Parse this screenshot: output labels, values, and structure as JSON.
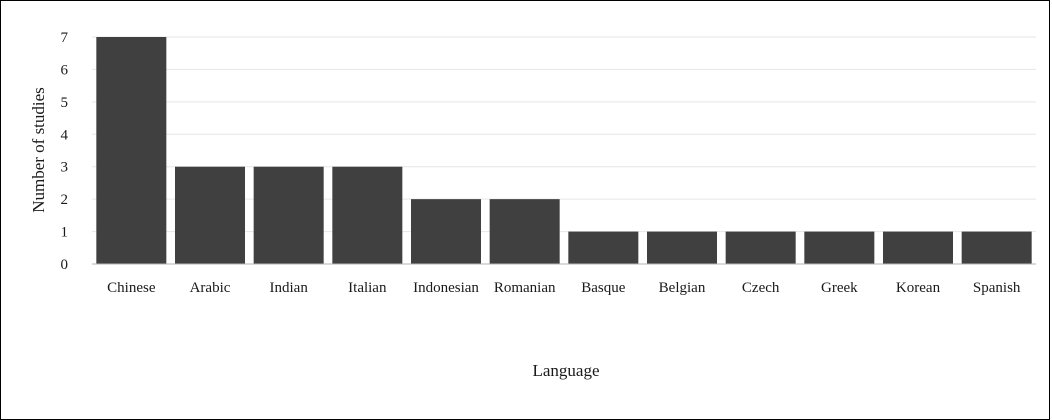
{
  "chart_data": {
    "type": "bar",
    "title": "",
    "xlabel": "Language",
    "ylabel": "Number of studies",
    "categories": [
      "Chinese",
      "Arabic",
      "Indian",
      "Italian",
      "Indonesian",
      "Romanian",
      "Basque",
      "Belgian",
      "Czech",
      "Greek",
      "Korean",
      "Spanish"
    ],
    "values": [
      7,
      3,
      3,
      3,
      2,
      2,
      1,
      1,
      1,
      1,
      1,
      1
    ],
    "ylim": [
      0,
      7
    ],
    "yticks": [
      "0",
      "1",
      "2",
      "3",
      "4",
      "5",
      "6",
      "7"
    ],
    "grid": true,
    "legend": "none",
    "colors": {
      "bar": "#404040",
      "grid": "#e6e6e6",
      "axis": "#b3b3b3"
    }
  }
}
